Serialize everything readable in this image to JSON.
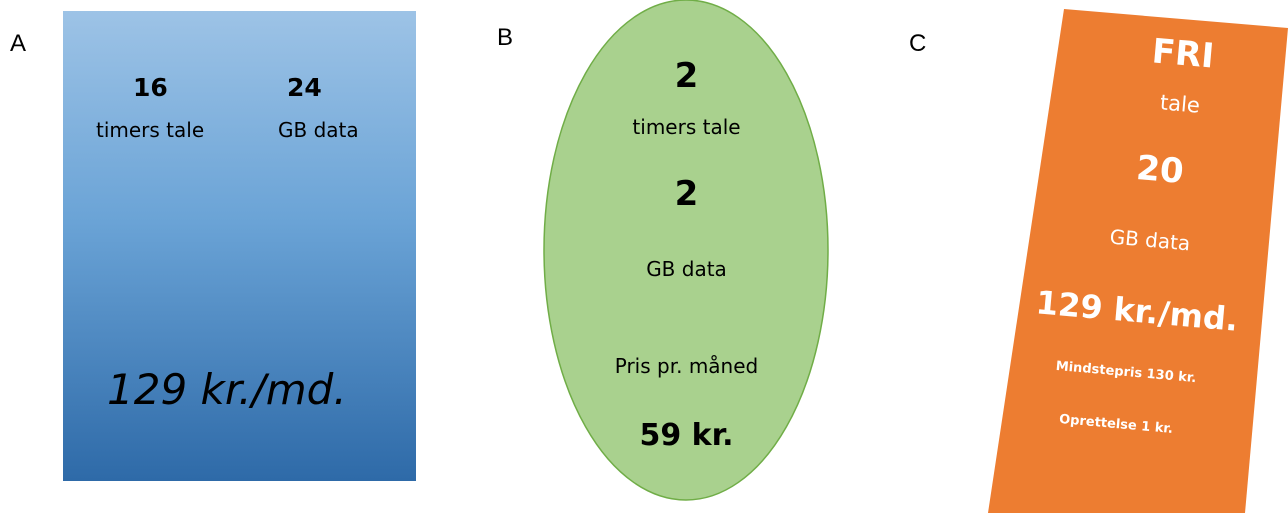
{
  "labels": {
    "a": "A",
    "b": "B",
    "c": "C"
  },
  "card_a": {
    "talk_value": "16",
    "talk_label": "timers tale",
    "data_value": "24",
    "data_label": "GB data",
    "price": "129 kr./md."
  },
  "card_b": {
    "talk_value": "2",
    "talk_label": "timers tale",
    "data_value": "2",
    "data_label": "GB data",
    "price_label": "Pris pr. måned",
    "price": "59 kr."
  },
  "card_c": {
    "talk_value": "FRI",
    "talk_label": "tale",
    "data_value": "20",
    "data_label": "GB data",
    "price": "129 kr./md.",
    "min_price": "Mindstepris 130 kr.",
    "setup": "Oprettelse 1 kr."
  },
  "colors": {
    "card_a_top": "#9dc3e6",
    "card_a_bottom": "#2e6aa8",
    "card_b_fill": "#a9d18e",
    "card_b_stroke": "#70ad47",
    "card_c_fill": "#ed7d31"
  }
}
